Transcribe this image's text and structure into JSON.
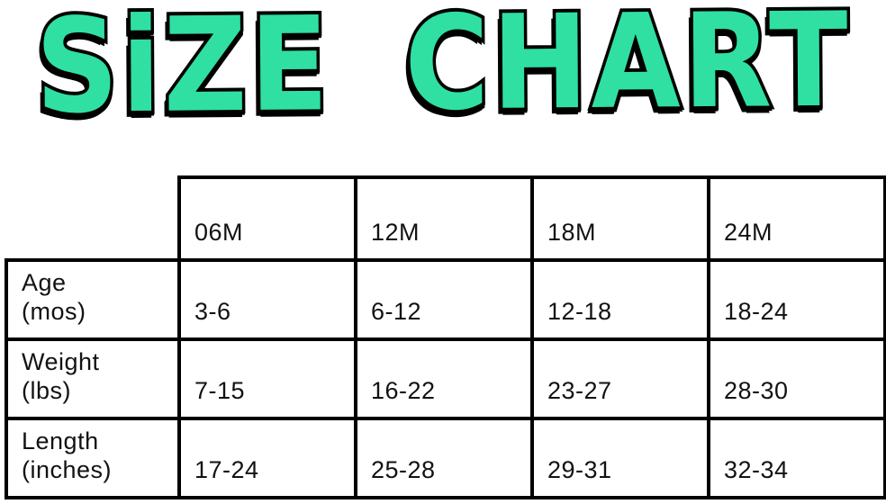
{
  "title": {
    "text": "SiZE CHART"
  },
  "colors": {
    "title_fill": "#2fe0a2",
    "title_outline": "#000000",
    "table_border": "#000000",
    "text": "#121212",
    "background": "#ffffff"
  },
  "size_table": {
    "column_headers": [
      "06M",
      "12M",
      "18M",
      "24M"
    ],
    "rows": [
      {
        "label": "Age",
        "unit": "(mos)",
        "values": [
          "3-6",
          "6-12",
          "12-18",
          "18-24"
        ]
      },
      {
        "label": "Weight",
        "unit": "(lbs)",
        "values": [
          "7-15",
          "16-22",
          "23-27",
          "28-30"
        ]
      },
      {
        "label": "Length",
        "unit": "(inches)",
        "values": [
          "17-24",
          "25-28",
          "29-31",
          "32-34"
        ]
      }
    ]
  },
  "chart_data": {
    "type": "table",
    "title": "SiZE CHART",
    "columns": [
      "",
      "06M",
      "12M",
      "18M",
      "24M"
    ],
    "rows": [
      [
        "Age (mos)",
        "3-6",
        "6-12",
        "12-18",
        "18-24"
      ],
      [
        "Weight (lbs)",
        "7-15",
        "16-22",
        "23-27",
        "28-30"
      ],
      [
        "Length (inches)",
        "17-24",
        "25-28",
        "29-31",
        "32-34"
      ]
    ]
  }
}
